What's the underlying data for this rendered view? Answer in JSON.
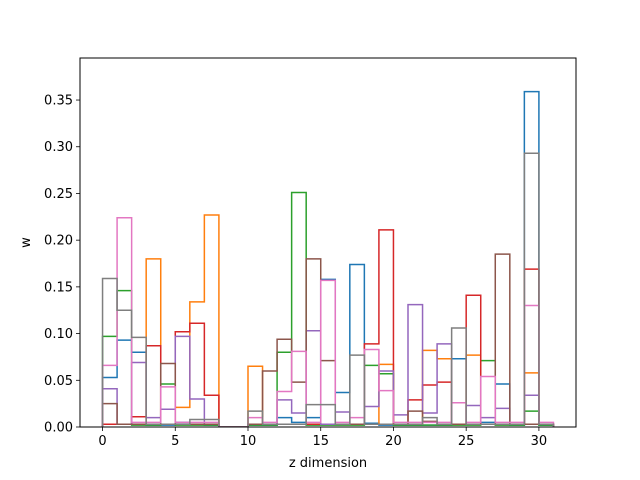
{
  "chart_data": {
    "type": "step-histogram",
    "xlabel": "z dimension",
    "ylabel": "w",
    "xlim": [
      -1.55,
      32.55
    ],
    "ylim": [
      0,
      0.395
    ],
    "bins_start": 0,
    "bin_width": 1,
    "xticks": [
      0,
      5,
      10,
      15,
      20,
      25,
      30
    ],
    "xtick_labels": [
      "0",
      "5",
      "10",
      "15",
      "20",
      "25",
      "30"
    ],
    "yticks": [
      0.0,
      0.05,
      0.1,
      0.15,
      0.2,
      0.25,
      0.3,
      0.35
    ],
    "ytick_labels": [
      "0.00",
      "0.05",
      "0.10",
      "0.15",
      "0.20",
      "0.25",
      "0.30",
      "0.35"
    ],
    "series": [
      {
        "color": "#1f77b4",
        "values": [
          0.053,
          0.093,
          0.08,
          0.002,
          0.002,
          0.005,
          0.003,
          0.002,
          0,
          0,
          0.002,
          0.002,
          0.01,
          0.005,
          0.01,
          0.158,
          0.037,
          0.174,
          0.004,
          0.002,
          0.002,
          0.002,
          0.002,
          0.002,
          0.073,
          0.003,
          0.005,
          0.046,
          0.002,
          0.359,
          0.002
        ]
      },
      {
        "color": "#ff7f0e",
        "values": [
          0.003,
          0.003,
          0.003,
          0.18,
          0.003,
          0.021,
          0.134,
          0.227,
          0,
          0,
          0.065,
          0.003,
          0.003,
          0.003,
          0.003,
          0.003,
          0.003,
          0.003,
          0.003,
          0.067,
          0.003,
          0.003,
          0.082,
          0.073,
          0.003,
          0.077,
          0.003,
          0.003,
          0.003,
          0.058,
          0.003
        ]
      },
      {
        "color": "#2ca02c",
        "values": [
          0.097,
          0.146,
          0.002,
          0.002,
          0.046,
          0.002,
          0.002,
          0.002,
          0,
          0,
          0.002,
          0.002,
          0.08,
          0.251,
          0.002,
          0.002,
          0.002,
          0.002,
          0.066,
          0.057,
          0.002,
          0.002,
          0.002,
          0.002,
          0.002,
          0.002,
          0.071,
          0.002,
          0.002,
          0.017,
          0.002
        ]
      },
      {
        "color": "#d62728",
        "values": [
          0.003,
          0.003,
          0.011,
          0.087,
          0.003,
          0.102,
          0.111,
          0.034,
          0,
          0,
          0.003,
          0.003,
          0.003,
          0.003,
          0.003,
          0.003,
          0.003,
          0.003,
          0.089,
          0.211,
          0.003,
          0.029,
          0.045,
          0.048,
          0.003,
          0.141,
          0.003,
          0.003,
          0.003,
          0.169,
          0.003
        ]
      },
      {
        "color": "#9467bd",
        "values": [
          0.041,
          0.003,
          0.069,
          0.01,
          0.019,
          0.097,
          0.03,
          0.003,
          0,
          0,
          0.003,
          0.003,
          0.029,
          0.015,
          0.103,
          0.003,
          0.016,
          0.003,
          0.022,
          0.06,
          0.013,
          0.131,
          0.015,
          0.089,
          0.003,
          0.023,
          0.01,
          0.02,
          0.003,
          0.034,
          0.003
        ]
      },
      {
        "color": "#8c564b",
        "values": [
          0.025,
          0.003,
          0.003,
          0.003,
          0.068,
          0.003,
          0.003,
          0.003,
          0,
          0,
          0.003,
          0.06,
          0.094,
          0.048,
          0.18,
          0.071,
          0.003,
          0.003,
          0.003,
          0.003,
          0.003,
          0.017,
          0.006,
          0.003,
          0.003,
          0.003,
          0.003,
          0.185,
          0.003,
          0.003,
          0.003
        ]
      },
      {
        "color": "#e377c2",
        "values": [
          0.066,
          0.224,
          0.005,
          0.005,
          0.043,
          0.005,
          0.005,
          0.005,
          0,
          0,
          0.01,
          0.005,
          0.038,
          0.081,
          0.005,
          0.157,
          0.005,
          0.01,
          0.083,
          0.039,
          0.005,
          0.005,
          0.005,
          0.005,
          0.026,
          0.005,
          0.054,
          0.005,
          0.005,
          0.13,
          0.005
        ]
      },
      {
        "color": "#7f7f7f",
        "values": [
          0.159,
          0.125,
          0.096,
          0.003,
          0.003,
          0.003,
          0.008,
          0.008,
          0,
          0,
          0.017,
          0.003,
          0.003,
          0.003,
          0.024,
          0.024,
          0.003,
          0.077,
          0.003,
          0.003,
          0.003,
          0.003,
          0.01,
          0.003,
          0.106,
          0.003,
          0.003,
          0.003,
          0.003,
          0.293,
          0.003
        ]
      }
    ]
  }
}
